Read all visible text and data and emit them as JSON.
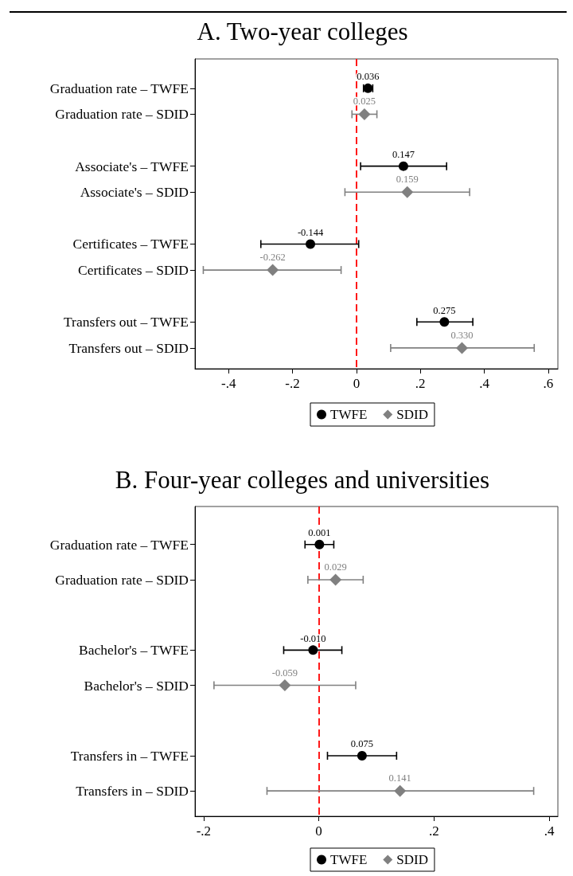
{
  "chart_data": [
    {
      "type": "scatter",
      "title": "A. Two-year colleges",
      "orientation": "horizontal",
      "legend": "bottom",
      "categories": [
        "Graduation rate – TWFE",
        "Graduation rate – SDID",
        null,
        "Associate's – TWFE",
        "Associate's – SDID",
        null,
        "Certificates – TWFE",
        "Certificates – SDID",
        null,
        "Transfers out – TWFE",
        "Transfers out – SDID"
      ],
      "series": [
        {
          "name": "TWFE",
          "color": "#000000",
          "marker": "circle",
          "values": [
            0.036,
            null,
            null,
            0.147,
            null,
            null,
            -0.144,
            null,
            null,
            0.275,
            null
          ],
          "errors": [
            [
              0.022,
              0.051
            ],
            null,
            null,
            [
              0.013,
              0.282
            ],
            null,
            null,
            [
              -0.299,
              0.007
            ],
            null,
            null,
            [
              0.189,
              0.364
            ],
            null
          ],
          "value_labels": [
            "0.036",
            null,
            null,
            "0.147",
            null,
            null,
            "-0.144",
            null,
            null,
            "0.275",
            null
          ]
        },
        {
          "name": "SDID",
          "color": "#808080",
          "marker": "diamond",
          "values": [
            null,
            0.025,
            null,
            null,
            0.159,
            null,
            null,
            -0.262,
            null,
            null,
            0.33
          ],
          "errors": [
            null,
            [
              -0.014,
              0.064
            ],
            null,
            null,
            [
              -0.036,
              0.354
            ],
            null,
            null,
            [
              -0.479,
              -0.048
            ],
            null,
            null,
            [
              0.107,
              0.556
            ]
          ],
          "value_labels": [
            null,
            "0.025",
            null,
            null,
            "0.159",
            null,
            null,
            "-0.262",
            null,
            null,
            "0.330"
          ]
        }
      ],
      "xlim": [
        -0.505,
        0.63
      ],
      "xticks": [
        {
          "value": -0.4,
          "label": "-.4"
        },
        {
          "value": -0.2,
          "label": "-.2"
        },
        0,
        {
          "value": 0.2,
          "label": ".2"
        },
        {
          "value": 0.4,
          "label": ".4"
        },
        {
          "value": 0.6,
          "label": ".6"
        }
      ],
      "ref_lines": [
        {
          "axis": "x",
          "value": 0,
          "color": "#ff0000",
          "line_style": "dashed"
        }
      ]
    },
    {
      "type": "scatter",
      "title": "B. Four-year colleges and universities",
      "orientation": "horizontal",
      "legend": "bottom",
      "categories": [
        "Graduation rate – TWFE",
        "Graduation rate – SDID",
        null,
        "Bachelor's – TWFE",
        "Bachelor's – SDID",
        null,
        "Transfers in – TWFE",
        "Transfers in – SDID"
      ],
      "series": [
        {
          "name": "TWFE",
          "color": "#000000",
          "marker": "circle",
          "values": [
            0.001,
            null,
            null,
            -0.01,
            null,
            null,
            0.075,
            null
          ],
          "errors": [
            [
              -0.024,
              0.026
            ],
            null,
            null,
            [
              -0.061,
              0.04
            ],
            null,
            null,
            [
              0.015,
              0.135
            ],
            null
          ],
          "value_labels": [
            "0.001",
            null,
            null,
            "-0.010",
            null,
            null,
            "0.075",
            null
          ]
        },
        {
          "name": "SDID",
          "color": "#808080",
          "marker": "diamond",
          "values": [
            null,
            0.029,
            null,
            null,
            -0.059,
            null,
            null,
            0.141
          ],
          "errors": [
            null,
            [
              -0.019,
              0.077
            ],
            null,
            null,
            [
              -0.182,
              0.064
            ],
            null,
            null,
            [
              -0.09,
              0.373
            ]
          ],
          "value_labels": [
            null,
            "0.029",
            null,
            null,
            "-0.059",
            null,
            null,
            "0.141"
          ]
        }
      ],
      "xlim": [
        -0.215,
        0.415
      ],
      "xticks": [
        {
          "value": -0.2,
          "label": "-.2"
        },
        0,
        {
          "value": 0.2,
          "label": ".2"
        },
        {
          "value": 0.4,
          "label": ".4"
        }
      ],
      "ref_lines": [
        {
          "axis": "x",
          "value": 0,
          "color": "#ff0000",
          "line_style": "dashed"
        }
      ]
    }
  ]
}
